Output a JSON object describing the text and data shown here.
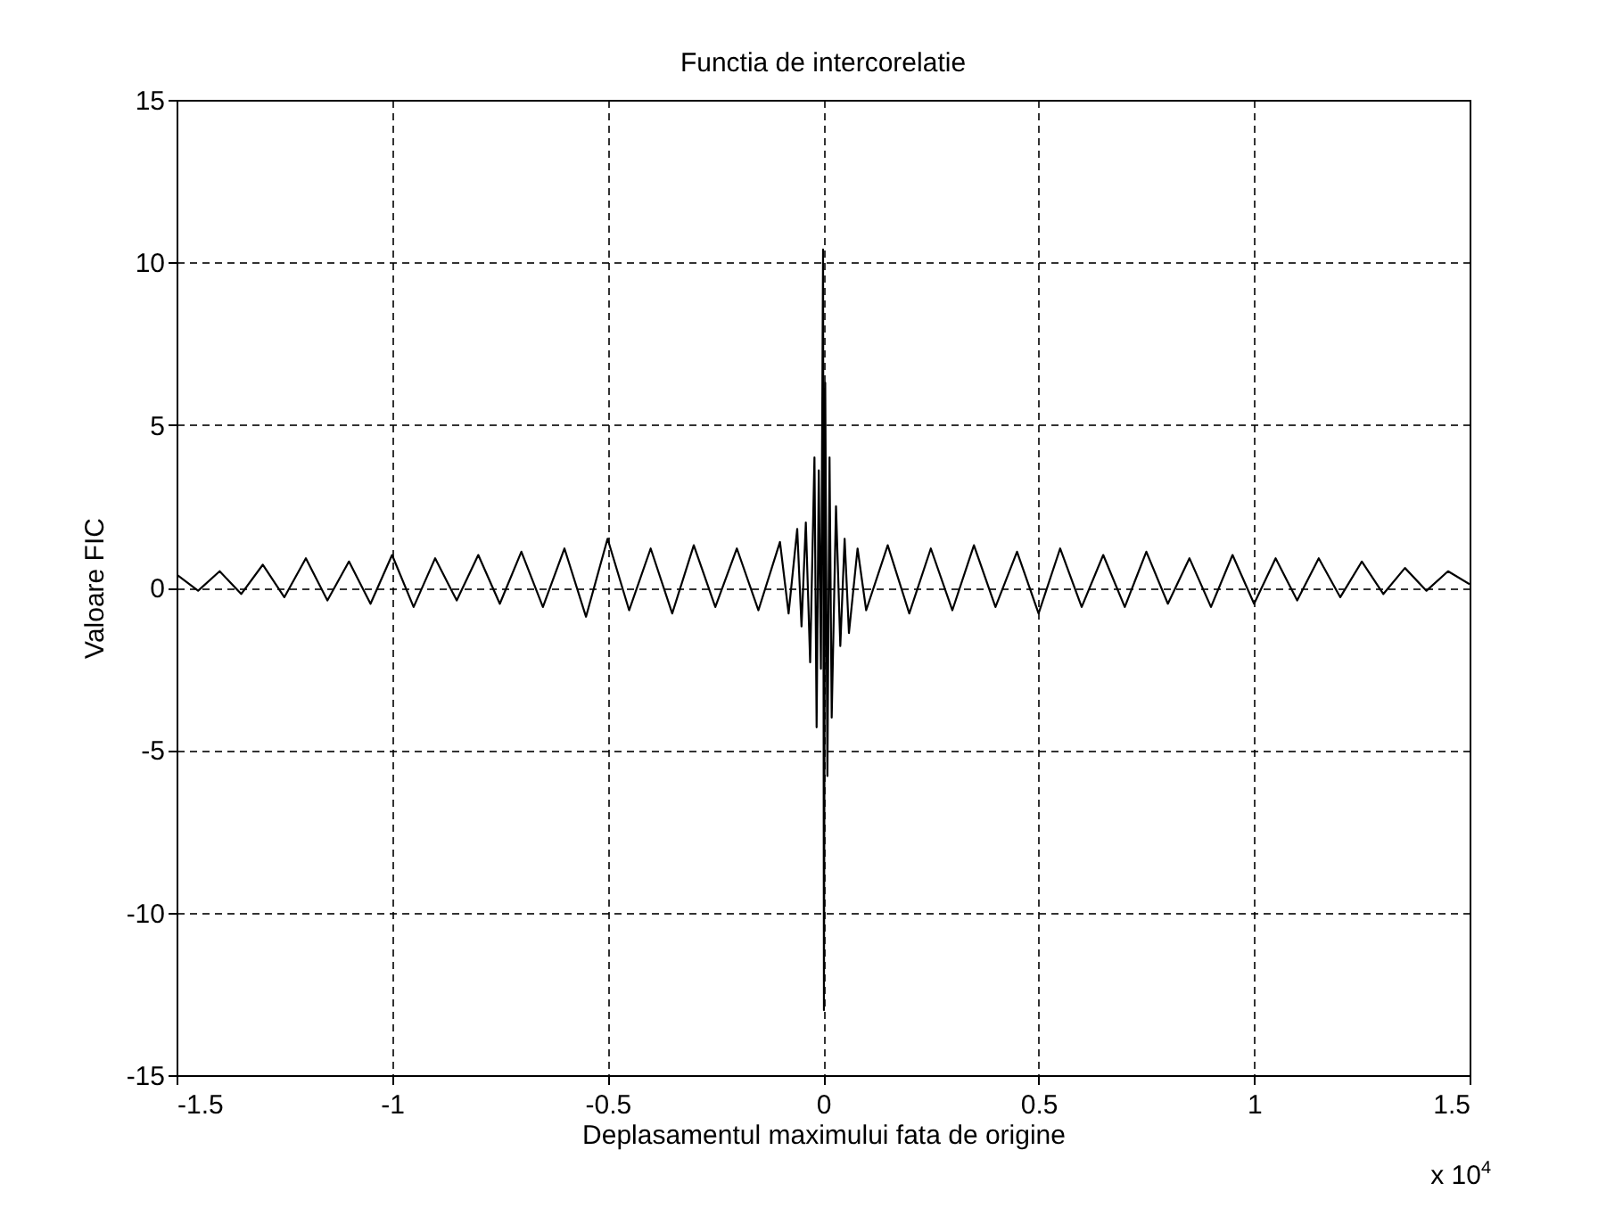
{
  "chart_data": {
    "type": "line",
    "title": "Functia de intercorelatie",
    "xlabel": "Deplasamentul maximului fata de origine",
    "ylabel": "Valoare FIC",
    "annotations": [
      "x 10$^{4}$"
    ],
    "xlim": [
      -1.5,
      1.5
    ],
    "xticks": [
      -1.5,
      -1,
      -0.5,
      0,
      0.5,
      1,
      1.5
    ],
    "ylim": [
      -15,
      15
    ],
    "yticks": [
      -15,
      -10,
      -5,
      0,
      5,
      10,
      15
    ],
    "grid": true,
    "line_style": "solid",
    "marker": "none",
    "series": [
      {
        "color": "#000000",
        "x": [
          -1.5,
          -1.45,
          -1.4,
          -1.35,
          -1.3,
          -1.25,
          -1.2,
          -1.15,
          -1.1,
          -1.05,
          -1.0,
          -0.95,
          -0.9,
          -0.85,
          -0.8,
          -0.75,
          -0.7,
          -0.65,
          -0.6,
          -0.55,
          -0.5,
          -0.45,
          -0.4,
          -0.35,
          -0.3,
          -0.25,
          -0.2,
          -0.15,
          -0.1,
          -0.08,
          -0.06,
          -0.05,
          -0.04,
          -0.03,
          -0.02,
          -0.015,
          -0.01,
          -0.005,
          0,
          0.002,
          0.005,
          0.01,
          0.015,
          0.02,
          0.03,
          0.04,
          0.05,
          0.06,
          0.08,
          0.1,
          0.15,
          0.2,
          0.25,
          0.3,
          0.35,
          0.4,
          0.45,
          0.5,
          0.55,
          0.6,
          0.65,
          0.7,
          0.75,
          0.8,
          0.85,
          0.9,
          0.95,
          1.0,
          1.05,
          1.1,
          1.15,
          1.2,
          1.25,
          1.3,
          1.35,
          1.4,
          1.45,
          1.5
        ],
        "values": [
          0.4,
          -0.1,
          0.5,
          -0.2,
          0.7,
          -0.3,
          0.9,
          -0.4,
          0.8,
          -0.5,
          1.0,
          -0.6,
          0.9,
          -0.4,
          1.0,
          -0.5,
          1.1,
          -0.6,
          1.2,
          -0.9,
          1.5,
          -0.7,
          1.2,
          -0.8,
          1.3,
          -0.6,
          1.2,
          -0.7,
          1.4,
          -0.8,
          1.8,
          -1.2,
          2.0,
          -2.3,
          4.0,
          -4.3,
          3.6,
          -2.5,
          10.4,
          -13,
          6.3,
          -5.8,
          4.0,
          -4.0,
          2.5,
          -1.8,
          1.5,
          -1.4,
          1.2,
          -0.7,
          1.3,
          -0.8,
          1.2,
          -0.7,
          1.3,
          -0.6,
          1.1,
          -0.8,
          1.2,
          -0.6,
          1.0,
          -0.6,
          1.1,
          -0.5,
          0.9,
          -0.6,
          1.0,
          -0.5,
          0.9,
          -0.4,
          0.9,
          -0.3,
          0.8,
          -0.2,
          0.6,
          -0.1,
          0.5,
          0.1
        ]
      }
    ]
  }
}
